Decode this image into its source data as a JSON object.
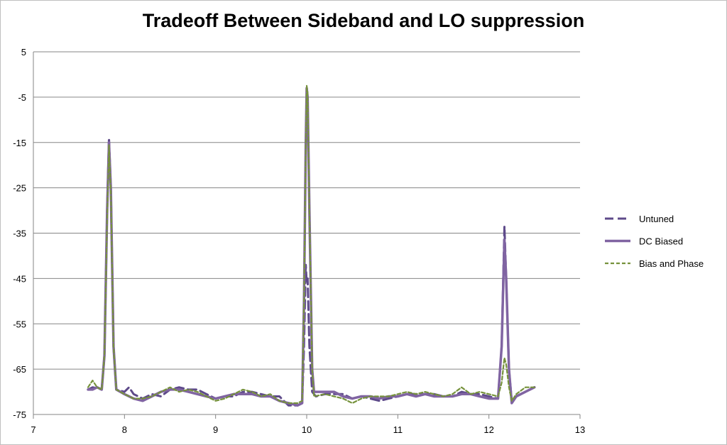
{
  "chart_data": {
    "type": "line",
    "title": "Tradeoff Between Sideband and LO suppression",
    "xlabel": "",
    "ylabel": "",
    "xlim": [
      7,
      13
    ],
    "ylim": [
      -75,
      5
    ],
    "x_ticks": [
      7,
      8,
      9,
      10,
      11,
      12,
      13
    ],
    "y_ticks": [
      5,
      -5,
      -15,
      -25,
      -35,
      -45,
      -55,
      -65,
      -75
    ],
    "grid": "horizontal",
    "legend_position": "right",
    "series": [
      {
        "name": "Untuned",
        "color": "#5e4a8a",
        "style": "dashed",
        "points": [
          [
            7.6,
            -69.5
          ],
          [
            7.65,
            -69
          ],
          [
            7.7,
            -69.2
          ],
          [
            7.75,
            -69.5
          ],
          [
            7.78,
            -62
          ],
          [
            7.81,
            -30
          ],
          [
            7.83,
            -14
          ],
          [
            7.85,
            -25
          ],
          [
            7.88,
            -60
          ],
          [
            7.91,
            -69.5
          ],
          [
            8.0,
            -70
          ],
          [
            8.05,
            -69
          ],
          [
            8.1,
            -70.5
          ],
          [
            8.2,
            -71.5
          ],
          [
            8.3,
            -70.5
          ],
          [
            8.4,
            -71
          ],
          [
            8.5,
            -69.5
          ],
          [
            8.6,
            -69
          ],
          [
            8.7,
            -69.5
          ],
          [
            8.8,
            -69.5
          ],
          [
            8.9,
            -70.5
          ],
          [
            9.0,
            -71.5
          ],
          [
            9.1,
            -71
          ],
          [
            9.2,
            -71
          ],
          [
            9.3,
            -70
          ],
          [
            9.4,
            -70
          ],
          [
            9.5,
            -70.5
          ],
          [
            9.6,
            -71
          ],
          [
            9.7,
            -71
          ],
          [
            9.8,
            -73
          ],
          [
            9.9,
            -73
          ],
          [
            9.95,
            -72.5
          ],
          [
            9.97,
            -60
          ],
          [
            9.99,
            -42
          ],
          [
            10.0,
            -46
          ],
          [
            10.01,
            -45
          ],
          [
            10.03,
            -60
          ],
          [
            10.06,
            -70
          ],
          [
            10.1,
            -71
          ],
          [
            10.2,
            -70.5
          ],
          [
            10.3,
            -70.5
          ],
          [
            10.4,
            -70.5
          ],
          [
            10.5,
            -71.5
          ],
          [
            10.6,
            -71
          ],
          [
            10.7,
            -71.5
          ],
          [
            10.8,
            -72
          ],
          [
            10.9,
            -71.5
          ],
          [
            11.0,
            -71
          ],
          [
            11.1,
            -70.5
          ],
          [
            11.2,
            -70.5
          ],
          [
            11.3,
            -70.5
          ],
          [
            11.4,
            -70.5
          ],
          [
            11.5,
            -71
          ],
          [
            11.6,
            -71
          ],
          [
            11.7,
            -70
          ],
          [
            11.8,
            -70.5
          ],
          [
            11.9,
            -70.5
          ],
          [
            12.0,
            -71
          ],
          [
            12.1,
            -71.5
          ],
          [
            12.14,
            -60
          ],
          [
            12.17,
            -33.5
          ],
          [
            12.19,
            -45
          ],
          [
            12.22,
            -65
          ],
          [
            12.25,
            -72
          ],
          [
            12.3,
            -71
          ],
          [
            12.4,
            -70
          ],
          [
            12.5,
            -69
          ]
        ]
      },
      {
        "name": "DC Biased",
        "color": "#8064a2",
        "style": "solid",
        "points": [
          [
            7.6,
            -69.5
          ],
          [
            7.65,
            -69.5
          ],
          [
            7.7,
            -69
          ],
          [
            7.75,
            -69.5
          ],
          [
            7.78,
            -62
          ],
          [
            7.81,
            -30
          ],
          [
            7.83,
            -15
          ],
          [
            7.85,
            -25
          ],
          [
            7.88,
            -60
          ],
          [
            7.91,
            -69.5
          ],
          [
            8.0,
            -70.5
          ],
          [
            8.1,
            -71.5
          ],
          [
            8.2,
            -72
          ],
          [
            8.3,
            -71
          ],
          [
            8.4,
            -70
          ],
          [
            8.5,
            -69.5
          ],
          [
            8.6,
            -69.5
          ],
          [
            8.7,
            -70
          ],
          [
            8.8,
            -70.5
          ],
          [
            8.9,
            -71
          ],
          [
            9.0,
            -71.5
          ],
          [
            9.1,
            -71
          ],
          [
            9.2,
            -70.5
          ],
          [
            9.3,
            -70.5
          ],
          [
            9.4,
            -70.5
          ],
          [
            9.5,
            -71
          ],
          [
            9.6,
            -71
          ],
          [
            9.7,
            -72
          ],
          [
            9.8,
            -72.5
          ],
          [
            9.9,
            -73
          ],
          [
            9.95,
            -72.5
          ],
          [
            9.97,
            -50
          ],
          [
            9.99,
            -15
          ],
          [
            10.0,
            -3
          ],
          [
            10.01,
            -5
          ],
          [
            10.03,
            -30
          ],
          [
            10.06,
            -65
          ],
          [
            10.08,
            -70
          ],
          [
            10.2,
            -70
          ],
          [
            10.3,
            -70
          ],
          [
            10.4,
            -71
          ],
          [
            10.5,
            -71.5
          ],
          [
            10.6,
            -71
          ],
          [
            10.7,
            -71
          ],
          [
            10.8,
            -71.5
          ],
          [
            10.9,
            -71
          ],
          [
            11.0,
            -71
          ],
          [
            11.1,
            -70.5
          ],
          [
            11.2,
            -71
          ],
          [
            11.3,
            -70.5
          ],
          [
            11.4,
            -71
          ],
          [
            11.5,
            -71
          ],
          [
            11.6,
            -71
          ],
          [
            11.7,
            -70.5
          ],
          [
            11.8,
            -70.5
          ],
          [
            11.9,
            -71
          ],
          [
            12.0,
            -71.5
          ],
          [
            12.1,
            -71.5
          ],
          [
            12.14,
            -60
          ],
          [
            12.17,
            -36.5
          ],
          [
            12.19,
            -45
          ],
          [
            12.22,
            -65
          ],
          [
            12.25,
            -72.5
          ],
          [
            12.3,
            -71
          ],
          [
            12.4,
            -70
          ],
          [
            12.5,
            -69
          ]
        ]
      },
      {
        "name": "Bias and Phase",
        "color": "#76923c",
        "style": "dotted",
        "points": [
          [
            7.6,
            -69
          ],
          [
            7.65,
            -67.5
          ],
          [
            7.7,
            -69
          ],
          [
            7.75,
            -69.5
          ],
          [
            7.78,
            -62
          ],
          [
            7.81,
            -32
          ],
          [
            7.83,
            -15.5
          ],
          [
            7.85,
            -26
          ],
          [
            7.88,
            -60
          ],
          [
            7.91,
            -69.5
          ],
          [
            8.0,
            -70.5
          ],
          [
            8.1,
            -71.5
          ],
          [
            8.2,
            -71.5
          ],
          [
            8.3,
            -71
          ],
          [
            8.4,
            -70
          ],
          [
            8.5,
            -69
          ],
          [
            8.6,
            -70
          ],
          [
            8.7,
            -69.5
          ],
          [
            8.8,
            -70
          ],
          [
            8.9,
            -71
          ],
          [
            9.0,
            -72
          ],
          [
            9.1,
            -71.5
          ],
          [
            9.2,
            -70.5
          ],
          [
            9.3,
            -69.5
          ],
          [
            9.4,
            -70
          ],
          [
            9.5,
            -71
          ],
          [
            9.6,
            -70.5
          ],
          [
            9.7,
            -72
          ],
          [
            9.8,
            -72.5
          ],
          [
            9.9,
            -72.5
          ],
          [
            9.95,
            -72
          ],
          [
            9.97,
            -50
          ],
          [
            9.99,
            -15
          ],
          [
            10.0,
            -2.5
          ],
          [
            10.01,
            -4
          ],
          [
            10.03,
            -30
          ],
          [
            10.06,
            -65
          ],
          [
            10.08,
            -71
          ],
          [
            10.2,
            -70.5
          ],
          [
            10.3,
            -71
          ],
          [
            10.4,
            -71.5
          ],
          [
            10.5,
            -72.5
          ],
          [
            10.6,
            -71.5
          ],
          [
            10.7,
            -71
          ],
          [
            10.8,
            -71
          ],
          [
            10.9,
            -71
          ],
          [
            11.0,
            -70.5
          ],
          [
            11.1,
            -70
          ],
          [
            11.2,
            -70.5
          ],
          [
            11.3,
            -70
          ],
          [
            11.4,
            -70.5
          ],
          [
            11.5,
            -71
          ],
          [
            11.6,
            -70.5
          ],
          [
            11.7,
            -69
          ],
          [
            11.8,
            -70.5
          ],
          [
            11.9,
            -70
          ],
          [
            12.0,
            -70.5
          ],
          [
            12.1,
            -71
          ],
          [
            12.14,
            -68
          ],
          [
            12.17,
            -62.5
          ],
          [
            12.19,
            -64
          ],
          [
            12.22,
            -69
          ],
          [
            12.25,
            -72
          ],
          [
            12.3,
            -70.5
          ],
          [
            12.4,
            -69
          ],
          [
            12.5,
            -69
          ]
        ]
      }
    ]
  }
}
